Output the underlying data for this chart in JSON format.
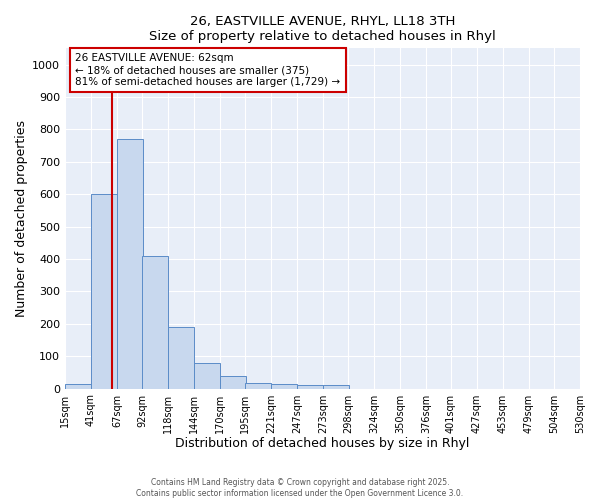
{
  "title_line1": "26, EASTVILLE AVENUE, RHYL, LL18 3TH",
  "title_line2": "Size of property relative to detached houses in Rhyl",
  "xlabel": "Distribution of detached houses by size in Rhyl",
  "ylabel": "Number of detached properties",
  "annotation_line1": "26 EASTVILLE AVENUE: 62sqm",
  "annotation_line2": "← 18% of detached houses are smaller (375)",
  "annotation_line3": "81% of semi-detached houses are larger (1,729) →",
  "property_size": 62,
  "bin_edges": [
    15,
    41,
    67,
    92,
    118,
    144,
    170,
    195,
    221,
    247,
    273,
    298,
    324,
    350,
    376,
    401,
    427,
    453,
    479,
    504,
    530
  ],
  "bar_heights": [
    15,
    600,
    770,
    410,
    190,
    80,
    38,
    18,
    15,
    10,
    10,
    0,
    0,
    0,
    0,
    0,
    0,
    0,
    0,
    0
  ],
  "bar_color": "#c8d8ee",
  "bar_edge_color": "#5b8cc8",
  "vline_color": "#cc0000",
  "ylim": [
    0,
    1050
  ],
  "yticks": [
    0,
    100,
    200,
    300,
    400,
    500,
    600,
    700,
    800,
    900,
    1000
  ],
  "background_color": "#ffffff",
  "plot_bg_color": "#e8eef8",
  "grid_color": "#ffffff",
  "annotation_box_facecolor": "#ffffff",
  "annotation_box_edgecolor": "#cc0000",
  "footer_line1": "Contains HM Land Registry data © Crown copyright and database right 2025.",
  "footer_line2": "Contains public sector information licensed under the Open Government Licence 3.0."
}
